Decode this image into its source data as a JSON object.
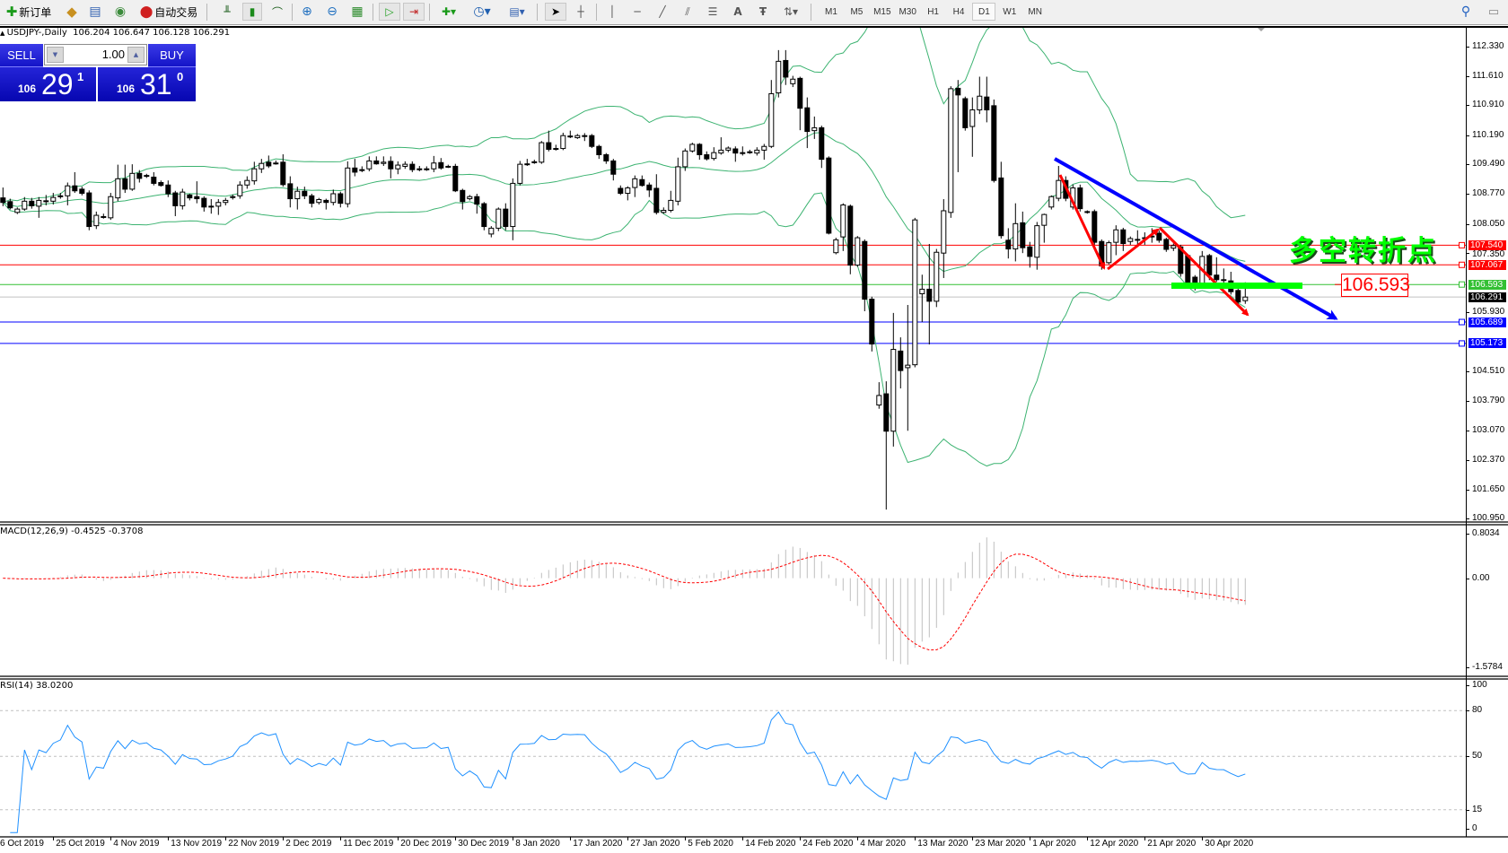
{
  "toolbar": {
    "new_order_label": "新订单",
    "auto_trading_label": "自动交易",
    "timeframes": [
      "M1",
      "M5",
      "M15",
      "M30",
      "H1",
      "H4",
      "D1",
      "W1",
      "MN"
    ],
    "active_timeframe": "D1"
  },
  "chart_info": "USDJPY-,Daily  106.204 106.647 106.128 106.291",
  "trade_panel": {
    "sell_label": "SELL",
    "buy_label": "BUY",
    "lot": "1.00",
    "sell_price": {
      "big_figure": "106",
      "pips": "29",
      "fraction": "1"
    },
    "buy_price": {
      "big_figure": "106",
      "pips": "31",
      "fraction": "0"
    }
  },
  "annotations": {
    "turning_point_text": "多空转折点",
    "level_box": "106.593"
  },
  "price_axis": [
    "112.330",
    "111.610",
    "110.910",
    "110.190",
    "109.490",
    "108.770",
    "108.050",
    "107.350",
    "105.930",
    "104.510",
    "103.790",
    "103.070",
    "102.370",
    "101.650",
    "100.950"
  ],
  "price_tags": [
    {
      "value": "107.540",
      "color": "#ff0000"
    },
    {
      "value": "107.067",
      "color": "#ff0000"
    },
    {
      "value": "106.593",
      "color": "#33c033"
    },
    {
      "value": "106.291",
      "color": "#000000"
    },
    {
      "value": "105.689",
      "color": "#0000ff"
    },
    {
      "value": "105.173",
      "color": "#0000ff"
    }
  ],
  "macd": {
    "label": "MACD(12,26,9) -0.4525 -0.3708",
    "axis": [
      "0.8034",
      "0.00",
      "-1.5784"
    ],
    "max": 0.8034,
    "min": -1.5784
  },
  "rsi": {
    "label": "RSI(14) 38.0200",
    "axis": [
      "100",
      "80",
      "50",
      "15",
      "0"
    ],
    "levels": [
      80,
      50,
      15
    ]
  },
  "dates": [
    "6 Oct 2019",
    "25 Oct 2019",
    "4 Nov 2019",
    "13 Nov 2019",
    "22 Nov 2019",
    "2 Dec 2019",
    "11 Dec 2019",
    "20 Dec 2019",
    "30 Dec 2019",
    "8 Jan 2020",
    "17 Jan 2020",
    "27 Jan 2020",
    "5 Feb 2020",
    "14 Feb 2020",
    "24 Feb 2020",
    "4 Mar 2020",
    "13 Mar 2020",
    "23 Mar 2020",
    "1 Apr 2020",
    "12 Apr 2020",
    "21 Apr 2020",
    "30 Apr 2020"
  ],
  "colors": {
    "bollinger": "#3cb371",
    "macd_hist": "#c0c0c0",
    "macd_signal": "#ff0000",
    "rsi": "#1e90ff",
    "trend_blue": "#0000ff",
    "zigzag_red": "#ff0000",
    "level_green": "#00ff00"
  },
  "chart_data": {
    "type": "candlestick",
    "symbol": "USDJPY-",
    "timeframe": "Daily",
    "ylim": [
      100.95,
      112.33
    ],
    "indicators": [
      "Bollinger Bands(20,2)",
      "MACD(12,26,9)",
      "RSI(14)"
    ],
    "horizontal_lines": [
      {
        "price": 107.54,
        "color": "#ff0000"
      },
      {
        "price": 107.067,
        "color": "#ff0000"
      },
      {
        "price": 106.593,
        "color": "#33c033"
      },
      {
        "price": 106.291,
        "color": "#c0c0c0"
      },
      {
        "price": 105.689,
        "color": "#0000ff"
      },
      {
        "price": 105.173,
        "color": "#0000ff"
      }
    ],
    "candles_ohlc": [
      [
        108.68,
        108.93,
        108.48,
        108.57
      ],
      [
        108.59,
        108.66,
        108.4,
        108.44
      ],
      [
        108.33,
        108.45,
        108.29,
        108.41
      ],
      [
        108.41,
        108.7,
        108.37,
        108.6
      ],
      [
        108.6,
        108.68,
        108.42,
        108.49
      ],
      [
        108.48,
        108.7,
        108.2,
        108.62
      ],
      [
        108.61,
        108.75,
        108.5,
        108.6
      ],
      [
        108.6,
        108.8,
        108.52,
        108.69
      ],
      [
        108.72,
        108.8,
        108.66,
        108.73
      ],
      [
        108.73,
        109.05,
        108.5,
        108.97
      ],
      [
        108.97,
        109.3,
        108.8,
        108.85
      ],
      [
        108.89,
        108.95,
        108.74,
        108.79
      ],
      [
        108.8,
        108.86,
        107.9,
        107.99
      ],
      [
        108.01,
        108.35,
        107.93,
        108.26
      ],
      [
        108.23,
        108.3,
        108.18,
        108.22
      ],
      [
        108.2,
        108.8,
        108.15,
        108.71
      ],
      [
        108.68,
        109.48,
        108.6,
        109.14
      ],
      [
        109.14,
        109.48,
        108.8,
        108.89
      ],
      [
        108.89,
        109.49,
        108.85,
        109.27
      ],
      [
        109.27,
        109.35,
        109.05,
        109.15
      ],
      [
        109.22,
        109.26,
        109.16,
        109.2
      ],
      [
        109.18,
        109.3,
        108.98,
        109.03
      ],
      [
        109.05,
        109.1,
        108.95,
        108.98
      ],
      [
        108.99,
        109.1,
        108.7,
        108.78
      ],
      [
        108.8,
        108.85,
        108.24,
        108.49
      ],
      [
        108.49,
        108.9,
        108.4,
        108.82
      ],
      [
        108.75,
        108.78,
        108.62,
        108.68
      ],
      [
        108.71,
        109.08,
        108.55,
        108.66
      ],
      [
        108.67,
        108.72,
        108.35,
        108.46
      ],
      [
        108.48,
        108.65,
        108.3,
        108.47
      ],
      [
        108.48,
        108.65,
        108.27,
        108.57
      ],
      [
        108.57,
        108.68,
        108.5,
        108.62
      ],
      [
        108.71,
        108.76,
        108.64,
        108.7
      ],
      [
        108.73,
        109.08,
        108.66,
        108.99
      ],
      [
        108.99,
        109.2,
        108.9,
        109.1
      ],
      [
        109.09,
        109.55,
        109.0,
        109.38
      ],
      [
        109.38,
        109.62,
        109.28,
        109.51
      ],
      [
        109.54,
        109.7,
        109.4,
        109.45
      ],
      [
        109.52,
        109.58,
        109.48,
        109.52
      ],
      [
        109.54,
        109.73,
        108.95,
        109.0
      ],
      [
        109.02,
        109.2,
        108.45,
        108.66
      ],
      [
        108.66,
        108.95,
        108.4,
        108.84
      ],
      [
        108.84,
        108.95,
        108.65,
        108.73
      ],
      [
        108.73,
        108.78,
        108.45,
        108.55
      ],
      [
        108.57,
        108.68,
        108.52,
        108.64
      ],
      [
        108.62,
        108.66,
        108.4,
        108.57
      ],
      [
        108.57,
        108.88,
        108.5,
        108.78
      ],
      [
        108.78,
        108.83,
        108.45,
        108.55
      ],
      [
        108.54,
        109.56,
        108.45,
        109.4
      ],
      [
        109.4,
        109.62,
        109.2,
        109.3
      ],
      [
        109.36,
        109.44,
        109.3,
        109.35
      ],
      [
        109.38,
        109.68,
        109.32,
        109.57
      ],
      [
        109.57,
        109.68,
        109.48,
        109.5
      ],
      [
        109.51,
        109.68,
        109.45,
        109.54
      ],
      [
        109.56,
        109.68,
        109.15,
        109.38
      ],
      [
        109.38,
        109.56,
        109.25,
        109.47
      ],
      [
        109.44,
        109.56,
        109.38,
        109.49
      ],
      [
        109.49,
        109.56,
        109.3,
        109.36
      ],
      [
        109.38,
        109.45,
        109.32,
        109.37
      ],
      [
        109.38,
        109.44,
        109.33,
        109.38
      ],
      [
        109.38,
        109.69,
        109.3,
        109.52
      ],
      [
        109.53,
        109.64,
        109.36,
        109.4
      ],
      [
        109.44,
        109.48,
        109.4,
        109.43
      ],
      [
        109.44,
        109.5,
        108.82,
        108.85
      ],
      [
        108.86,
        108.9,
        108.4,
        108.59
      ],
      [
        108.66,
        108.75,
        108.62,
        108.71
      ],
      [
        108.71,
        108.78,
        108.3,
        108.53
      ],
      [
        108.54,
        108.58,
        107.9,
        107.99
      ],
      [
        107.81,
        108.0,
        107.73,
        107.95
      ],
      [
        107.95,
        108.45,
        107.88,
        108.41
      ],
      [
        108.41,
        108.55,
        107.9,
        107.99
      ],
      [
        107.99,
        109.15,
        107.66,
        109.03
      ],
      [
        109.03,
        109.57,
        108.98,
        109.49
      ],
      [
        109.5,
        109.62,
        109.45,
        109.5
      ],
      [
        109.55,
        109.6,
        109.5,
        109.54
      ],
      [
        109.54,
        110.05,
        109.5,
        110.01
      ],
      [
        110.01,
        110.3,
        109.8,
        109.85
      ],
      [
        109.87,
        109.96,
        109.82,
        109.87
      ],
      [
        109.87,
        110.25,
        109.83,
        110.18
      ],
      [
        110.17,
        110.3,
        110.12,
        110.16
      ],
      [
        110.13,
        110.22,
        110.1,
        110.18
      ],
      [
        110.18,
        110.24,
        110.05,
        110.17
      ],
      [
        110.18,
        110.22,
        109.88,
        109.92
      ],
      [
        109.92,
        109.96,
        109.62,
        109.72
      ],
      [
        109.72,
        109.76,
        109.5,
        109.57
      ],
      [
        109.57,
        109.62,
        109.1,
        109.25
      ],
      [
        108.91,
        108.98,
        108.75,
        108.79
      ],
      [
        108.79,
        108.96,
        108.62,
        108.92
      ],
      [
        108.93,
        109.22,
        108.7,
        109.14
      ],
      [
        109.12,
        109.22,
        108.95,
        108.98
      ],
      [
        108.99,
        109.05,
        108.7,
        108.87
      ],
      [
        108.91,
        109.25,
        108.28,
        108.33
      ],
      [
        108.33,
        108.45,
        108.3,
        108.38
      ],
      [
        108.38,
        108.85,
        108.33,
        108.62
      ],
      [
        108.6,
        109.65,
        108.5,
        109.43
      ],
      [
        109.43,
        109.87,
        109.33,
        109.81
      ],
      [
        109.81,
        110.01,
        109.77,
        109.97
      ],
      [
        109.97,
        110.0,
        109.6,
        109.72
      ],
      [
        109.72,
        109.8,
        109.58,
        109.62
      ],
      [
        109.63,
        109.9,
        109.58,
        109.77
      ],
      [
        109.76,
        110.14,
        109.72,
        109.83
      ],
      [
        109.83,
        109.92,
        109.78,
        109.88
      ],
      [
        109.86,
        109.92,
        109.55,
        109.76
      ],
      [
        109.77,
        109.92,
        109.7,
        109.77
      ],
      [
        109.79,
        109.84,
        109.74,
        109.79
      ],
      [
        109.76,
        109.9,
        109.7,
        109.83
      ],
      [
        109.83,
        109.98,
        109.6,
        109.92
      ],
      [
        109.92,
        111.52,
        109.88,
        111.19
      ],
      [
        111.21,
        112.24,
        111.1,
        111.97
      ],
      [
        111.99,
        112.24,
        111.4,
        111.59
      ],
      [
        111.43,
        111.62,
        111.35,
        111.54
      ],
      [
        111.56,
        111.6,
        110.31,
        110.84
      ],
      [
        110.85,
        111.1,
        109.88,
        110.28
      ],
      [
        110.3,
        110.64,
        110.1,
        110.37
      ],
      [
        110.37,
        110.42,
        109.4,
        109.61
      ],
      [
        109.64,
        109.68,
        107.8,
        107.83
      ],
      [
        107.36,
        107.72,
        107.32,
        107.67
      ],
      [
        107.74,
        108.55,
        107.4,
        108.51
      ],
      [
        108.48,
        108.52,
        106.84,
        107.06
      ],
      [
        107.06,
        107.76,
        107.02,
        107.72
      ],
      [
        107.63,
        107.68,
        105.95,
        106.24
      ],
      [
        106.24,
        106.3,
        104.98,
        105.16
      ],
      [
        103.69,
        104.24,
        103.6,
        103.92
      ],
      [
        103.96,
        104.26,
        101.17,
        103.06
      ],
      [
        103.06,
        105.91,
        102.69,
        105.03
      ],
      [
        104.99,
        105.32,
        104.09,
        104.52
      ],
      [
        104.59,
        106.1,
        103.07,
        104.65
      ],
      [
        104.66,
        108.2,
        104.6,
        108.15
      ],
      [
        106.37,
        106.83,
        105.69,
        106.48
      ],
      [
        106.48,
        107.57,
        105.15,
        106.19
      ],
      [
        106.19,
        107.45,
        106.05,
        107.37
      ],
      [
        107.35,
        108.65,
        106.75,
        108.37
      ],
      [
        108.33,
        111.37,
        108.2,
        111.31
      ],
      [
        111.32,
        111.52,
        109.3,
        111.16
      ],
      [
        111.07,
        111.12,
        110.3,
        110.37
      ],
      [
        110.4,
        111.1,
        109.67,
        110.8
      ],
      [
        110.8,
        111.6,
        110.7,
        111.13
      ],
      [
        111.11,
        111.6,
        110.5,
        110.8
      ],
      [
        110.9,
        111.05,
        109.05,
        109.1
      ],
      [
        109.16,
        109.55,
        107.7,
        107.77
      ],
      [
        107.66,
        107.95,
        107.22,
        107.45
      ],
      [
        107.45,
        108.55,
        107.15,
        108.06
      ],
      [
        108.08,
        108.35,
        107.35,
        107.48
      ],
      [
        107.5,
        107.62,
        107.0,
        107.27
      ],
      [
        107.25,
        108.1,
        106.95,
        108.01
      ],
      [
        108.02,
        108.3,
        107.6,
        108.28
      ],
      [
        108.46,
        108.74,
        108.4,
        108.71
      ],
      [
        108.67,
        109.45,
        108.6,
        109.1
      ],
      [
        109.1,
        109.2,
        108.6,
        108.67
      ],
      [
        108.46,
        109.0,
        108.4,
        108.92
      ],
      [
        108.92,
        109.0,
        108.35,
        108.42
      ],
      [
        108.35,
        108.38,
        108.3,
        108.34
      ],
      [
        108.35,
        108.4,
        107.55,
        107.61
      ],
      [
        107.63,
        107.68,
        106.95,
        107.04
      ],
      [
        107.12,
        107.65,
        107.08,
        107.6
      ],
      [
        107.61,
        108.02,
        107.3,
        107.91
      ],
      [
        107.91,
        107.96,
        107.4,
        107.58
      ],
      [
        107.63,
        107.75,
        107.55,
        107.7
      ],
      [
        107.68,
        107.9,
        107.5,
        107.68
      ],
      [
        107.72,
        107.85,
        107.55,
        107.72
      ],
      [
        107.76,
        107.95,
        107.6,
        107.76
      ],
      [
        107.83,
        107.9,
        107.6,
        107.66
      ],
      [
        107.68,
        107.72,
        107.38,
        107.44
      ],
      [
        107.47,
        107.58,
        107.4,
        107.53
      ],
      [
        107.5,
        107.55,
        106.78,
        106.86
      ],
      [
        107.29,
        107.33,
        106.55,
        106.6
      ],
      [
        106.77,
        106.82,
        106.45,
        106.62
      ],
      [
        106.6,
        107.4,
        106.5,
        107.27
      ],
      [
        107.29,
        107.33,
        106.7,
        106.82
      ],
      [
        106.82,
        107.25,
        106.66,
        106.71
      ],
      [
        106.71,
        106.98,
        106.6,
        106.7
      ],
      [
        106.68,
        106.9,
        106.35,
        106.42
      ],
      [
        106.45,
        106.5,
        106.05,
        106.17
      ],
      [
        106.204,
        106.647,
        106.128,
        106.291
      ]
    ]
  }
}
